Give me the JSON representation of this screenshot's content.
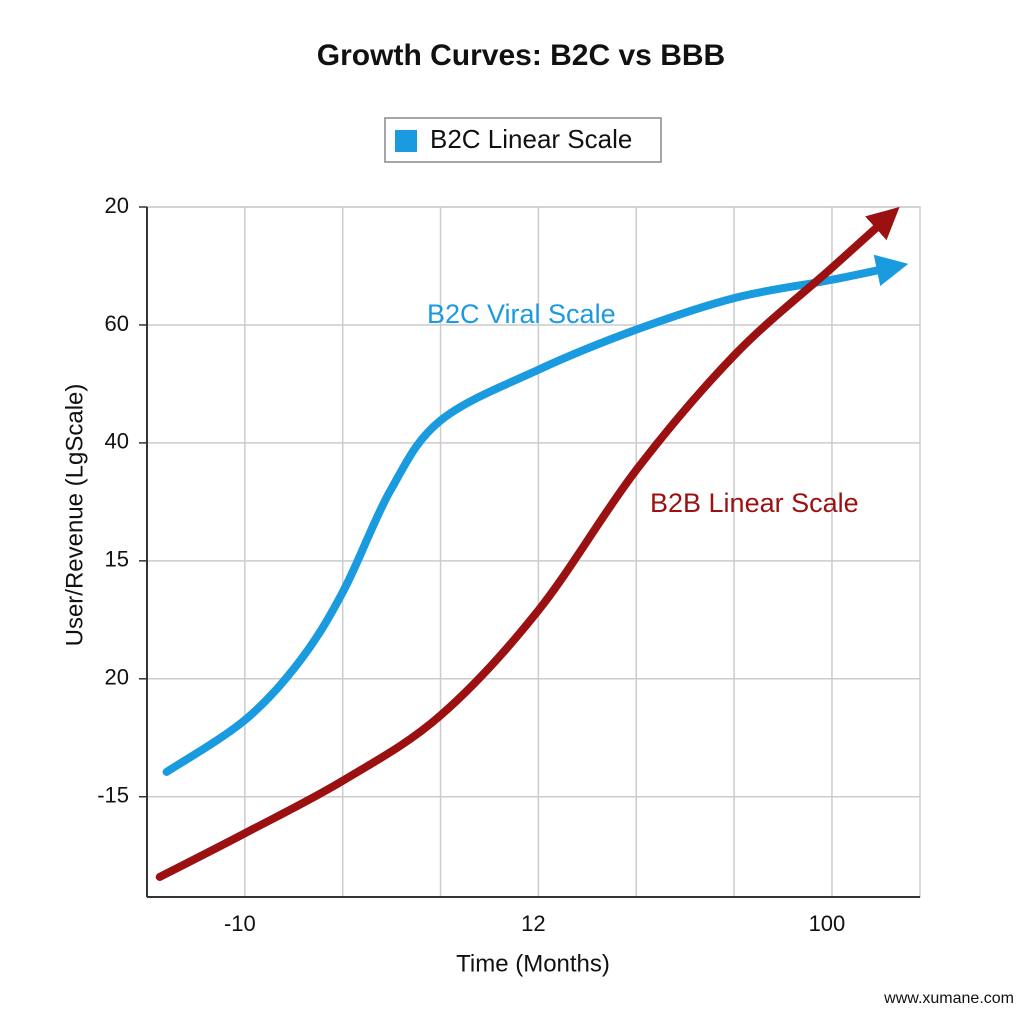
{
  "chart_data": {
    "type": "line",
    "title": "Growth Curves: B2C vs BBB",
    "x_label": "Time (Months)",
    "y_label": "User/Revenue (LgScale)",
    "legend_label": "B2C Linear Scale",
    "watermark": "www.xumane.com",
    "xlim": [
      0,
      7.9
    ],
    "ylim": [
      0.15,
      6
    ],
    "xticks": [
      {
        "value": 0,
        "label": null
      },
      {
        "value": 1,
        "label": "-10"
      },
      {
        "value": 2,
        "label": null
      },
      {
        "value": 3,
        "label": null
      },
      {
        "value": 4,
        "label": "12"
      },
      {
        "value": 5,
        "label": null
      },
      {
        "value": 6,
        "label": null
      },
      {
        "value": 7,
        "label": "100"
      }
    ],
    "yticks": [
      {
        "value": 1,
        "label": "-15"
      },
      {
        "value": 2,
        "label": "20"
      },
      {
        "value": 3,
        "label": "15"
      },
      {
        "value": 4,
        "label": "40"
      },
      {
        "value": 5,
        "label": "60"
      },
      {
        "value": 6,
        "label": "20"
      }
    ],
    "grid": true,
    "series": [
      {
        "name": "B2C Viral Scale",
        "color": "#1a9be0",
        "x": [
          0.2,
          1.0,
          1.57,
          2.01,
          2.49,
          3.0,
          4.0,
          5.0,
          6.01,
          6.98,
          7.62
        ],
        "values": [
          1.21,
          1.65,
          2.16,
          2.75,
          3.6,
          4.19,
          4.62,
          4.96,
          5.23,
          5.38,
          5.49
        ]
      },
      {
        "name": "B2B Linear Scale",
        "color": "#9b1111",
        "x": [
          0.13,
          1.0,
          2.01,
          3.0,
          4.0,
          5.0,
          6.01,
          6.98,
          7.57
        ],
        "values": [
          0.32,
          0.69,
          1.14,
          1.69,
          2.58,
          3.77,
          4.75,
          5.47,
          5.91
        ]
      }
    ]
  }
}
